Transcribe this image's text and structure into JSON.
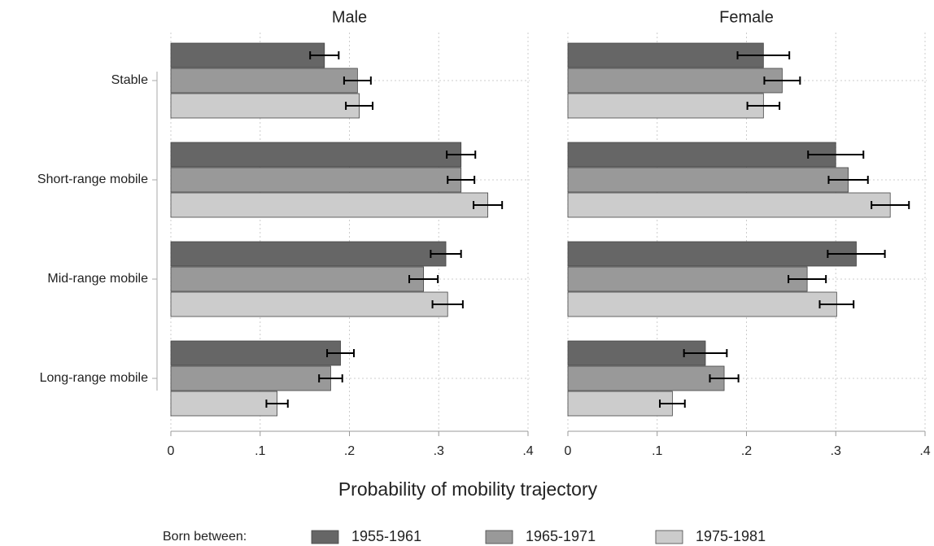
{
  "chart_data": {
    "type": "bar",
    "orientation": "horizontal",
    "panels": [
      "Male",
      "Female"
    ],
    "categories": [
      "Stable",
      "Short-range mobile",
      "Mid-range mobile",
      "Long-range mobile"
    ],
    "series": [
      {
        "name": "1955-1961",
        "color": "#666666",
        "values": [
          [
            0.172,
            0.325,
            0.308,
            0.19
          ],
          [
            0.219,
            0.3,
            0.323,
            0.154
          ]
        ],
        "errors": [
          [
            0.016,
            0.016,
            0.017,
            0.015
          ],
          [
            0.029,
            0.031,
            0.032,
            0.024
          ]
        ]
      },
      {
        "name": "1965-1971",
        "color": "#999999",
        "values": [
          [
            0.209,
            0.325,
            0.283,
            0.179
          ],
          [
            0.24,
            0.314,
            0.268,
            0.175
          ]
        ],
        "errors": [
          [
            0.015,
            0.015,
            0.016,
            0.013
          ],
          [
            0.02,
            0.022,
            0.021,
            0.016
          ]
        ]
      },
      {
        "name": "1975-1981",
        "color": "#cccccc",
        "values": [
          [
            0.211,
            0.355,
            0.31,
            0.119
          ],
          [
            0.219,
            0.361,
            0.301,
            0.117
          ]
        ],
        "errors": [
          [
            0.015,
            0.016,
            0.017,
            0.012
          ],
          [
            0.018,
            0.021,
            0.019,
            0.014
          ]
        ]
      }
    ],
    "xlim": [
      0,
      0.4
    ],
    "xticks": [
      0,
      {
        "value": 0.1,
        "label": ".1"
      },
      {
        "value": 0.2,
        "label": ".2"
      },
      {
        "value": 0.3,
        "label": ".3"
      },
      {
        "value": 0.4,
        "label": ".4"
      }
    ],
    "xlabel": "Probability of mobility trajectory",
    "legend_title": "Born between:",
    "grid": true
  }
}
